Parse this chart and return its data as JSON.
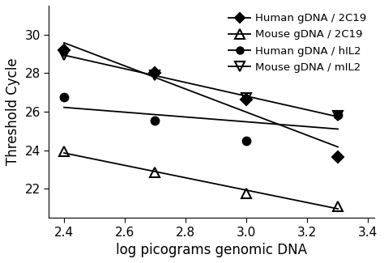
{
  "series": [
    {
      "label": "Human gDNA / 2C19",
      "x": [
        2.4,
        2.699,
        3.0,
        3.301
      ],
      "y": [
        29.2,
        28.0,
        26.65,
        23.65
      ],
      "marker": "D",
      "fillstyle": "full",
      "markersize": 7,
      "color": "black"
    },
    {
      "label": "Mouse gDNA / 2C19",
      "x": [
        2.4,
        2.699,
        3.0,
        3.301
      ],
      "y": [
        23.95,
        22.85,
        21.75,
        21.1
      ],
      "marker": "^",
      "fillstyle": "none",
      "markersize": 9,
      "color": "black"
    },
    {
      "label": "Human gDNA / hIL2",
      "x": [
        2.4,
        2.699,
        3.0,
        3.301
      ],
      "y": [
        26.75,
        25.55,
        24.5,
        25.85
      ],
      "marker": "o",
      "fillstyle": "full",
      "markersize": 7,
      "color": "black"
    },
    {
      "label": "Mouse gDNA / mIL2",
      "x": [
        2.4,
        2.699,
        3.0,
        3.301
      ],
      "y": [
        28.95,
        27.9,
        26.7,
        25.8
      ],
      "marker": "v",
      "fillstyle": "none",
      "markersize": 9,
      "color": "black"
    }
  ],
  "xlabel": "log picograms genomic DNA",
  "ylabel": "Threshold Cycle",
  "xlim": [
    2.35,
    3.42
  ],
  "ylim": [
    20.5,
    31.5
  ],
  "yticks": [
    22,
    24,
    26,
    28,
    30
  ],
  "xticks": [
    2.4,
    2.6,
    2.8,
    3.0,
    3.2,
    3.4
  ],
  "xlabel_fontsize": 12,
  "ylabel_fontsize": 12,
  "tick_fontsize": 11,
  "legend_fontsize": 9.5
}
